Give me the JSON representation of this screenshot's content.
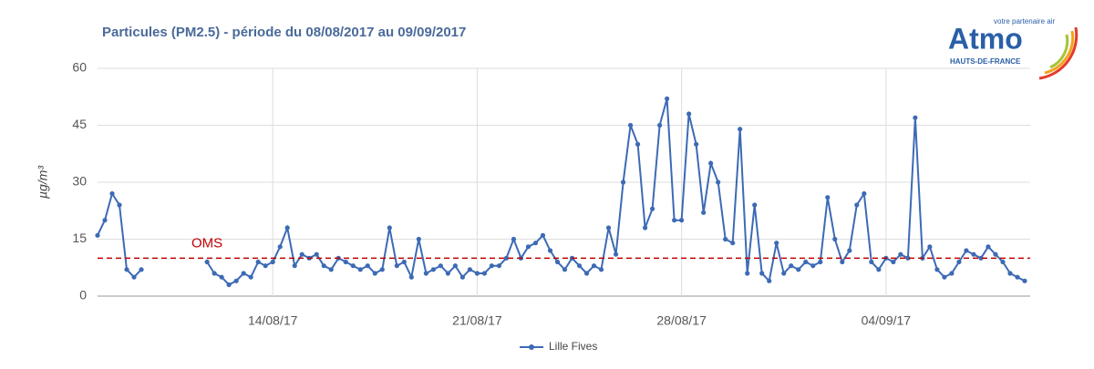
{
  "chart_data": {
    "type": "line",
    "title": "Particules (PM2.5) - période du 08/08/2017 au 09/09/2017",
    "y_label": "µg/m³",
    "categories": [
      null,
      null,
      null,
      null,
      null,
      null,
      null,
      null,
      null,
      null,
      null,
      null,
      null,
      null,
      null,
      null,
      null,
      null,
      null,
      null,
      null,
      null,
      null,
      null,
      "14/08/17",
      null,
      null,
      null,
      null,
      null,
      null,
      null,
      null,
      null,
      null,
      null,
      null,
      null,
      null,
      null,
      null,
      null,
      null,
      null,
      null,
      null,
      null,
      null,
      null,
      null,
      null,
      null,
      "21/08/17",
      null,
      null,
      null,
      null,
      null,
      null,
      null,
      null,
      null,
      null,
      null,
      null,
      null,
      null,
      null,
      null,
      null,
      null,
      null,
      null,
      null,
      null,
      null,
      null,
      null,
      null,
      null,
      "28/08/17",
      null,
      null,
      null,
      null,
      null,
      null,
      null,
      null,
      null,
      null,
      null,
      null,
      null,
      null,
      null,
      null,
      null,
      null,
      null,
      null,
      null,
      null,
      null,
      null,
      null,
      null,
      null,
      "04/09/17",
      null,
      null,
      null,
      null,
      null,
      null,
      null,
      null,
      null,
      null,
      null,
      null,
      null,
      null,
      null,
      null,
      null,
      null,
      null
    ],
    "series": [
      {
        "name": "Lille Fives",
        "color": "#3d6ab5",
        "values": [
          16,
          20,
          27,
          24,
          7,
          5,
          7,
          null,
          null,
          null,
          null,
          null,
          null,
          null,
          null,
          9,
          6,
          5,
          3,
          4,
          6,
          5,
          9,
          8,
          9,
          13,
          18,
          8,
          11,
          10,
          11,
          8,
          7,
          10,
          9,
          8,
          7,
          8,
          6,
          7,
          18,
          8,
          9,
          5,
          15,
          6,
          7,
          8,
          6,
          8,
          5,
          7,
          6,
          6,
          8,
          8,
          10,
          15,
          10,
          13,
          14,
          16,
          12,
          9,
          7,
          10,
          8,
          6,
          8,
          7,
          18,
          11,
          30,
          45,
          40,
          18,
          23,
          45,
          52,
          20,
          20,
          48,
          40,
          22,
          35,
          30,
          15,
          14,
          44,
          6,
          24,
          6,
          4,
          14,
          6,
          8,
          7,
          9,
          8,
          9,
          26,
          15,
          9,
          12,
          24,
          27,
          9,
          7,
          10,
          9,
          11,
          10,
          47,
          10,
          13,
          7,
          5,
          6,
          9,
          12,
          11,
          10,
          13,
          11,
          9,
          6,
          5,
          4
        ]
      }
    ],
    "ylim": [
      0,
      60
    ],
    "yticks": [
      0,
      15,
      30,
      45,
      60
    ],
    "grid": true,
    "reference_line": {
      "label": "OMS",
      "value": 10,
      "color": "#c00000"
    },
    "legend": "bottom"
  },
  "logo": {
    "name": "Atmo",
    "tagline": "votre partenaire air",
    "region": "HAUTS-DE-FRANCE"
  }
}
